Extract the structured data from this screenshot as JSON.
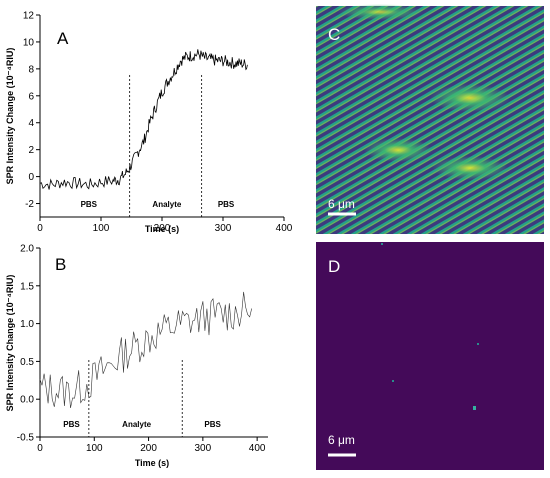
{
  "chart_data": [
    {
      "panel": "A",
      "type": "line",
      "xlabel": "Time (s)",
      "ylabel": "SPR Intensity Change (10⁻⁴RIU)",
      "xlim": [
        0,
        400
      ],
      "ylim": [
        -3,
        12
      ],
      "xticks": [
        0,
        100,
        200,
        300,
        400
      ],
      "yticks": [
        -2,
        0,
        2,
        4,
        6,
        8,
        10,
        12
      ],
      "regions": [
        {
          "label": "PBS",
          "x": 80
        },
        {
          "label": "Analyte",
          "x": 208
        },
        {
          "label": "PBS",
          "x": 305
        }
      ],
      "dividers": [
        147,
        265
      ],
      "series": [
        {
          "x": [
            0,
            20,
            40,
            60,
            80,
            100,
            120,
            130,
            140,
            150,
            160,
            170,
            180,
            190,
            200,
            210,
            220,
            230,
            240,
            250,
            260,
            270,
            280,
            290,
            300,
            310,
            320,
            330,
            340
          ],
          "y": [
            -0.5,
            -0.6,
            -0.4,
            -0.5,
            -0.6,
            -0.4,
            -0.3,
            -0.2,
            0.2,
            0.9,
            1.8,
            2.6,
            4.0,
            5.2,
            6.3,
            7.1,
            7.8,
            8.6,
            8.9,
            9.0,
            9.1,
            8.8,
            8.7,
            8.6,
            8.6,
            8.5,
            8.4,
            8.4,
            8.3
          ]
        }
      ]
    },
    {
      "panel": "B",
      "type": "line",
      "xlabel": "Time (s)",
      "ylabel": "SPR Intensity Change (10⁻⁴RIU)",
      "xlim": [
        0,
        420
      ],
      "ylim": [
        -0.5,
        2.0
      ],
      "xticks": [
        0,
        100,
        200,
        300,
        400
      ],
      "yticks": [
        -0.5,
        0.0,
        0.5,
        1.0,
        1.5,
        2.0
      ],
      "regions": [
        {
          "label": "PBS",
          "x": 58
        },
        {
          "label": "Analyte",
          "x": 178
        },
        {
          "label": "PBS",
          "x": 318
        }
      ],
      "dividers": [
        90,
        262
      ],
      "series": [
        {
          "x": [
            0,
            30,
            60,
            90,
            120,
            150,
            180,
            210,
            240,
            270,
            300,
            330,
            360,
            390
          ],
          "y": [
            0.15,
            0.12,
            0.1,
            0.22,
            0.4,
            0.58,
            0.72,
            0.85,
            0.95,
            1.02,
            1.08,
            1.12,
            1.15,
            1.2
          ]
        }
      ]
    }
  ],
  "images": {
    "C": {
      "label": "C",
      "scalebar": "6 μm"
    },
    "D": {
      "label": "D",
      "scalebar": "6 μm"
    }
  }
}
